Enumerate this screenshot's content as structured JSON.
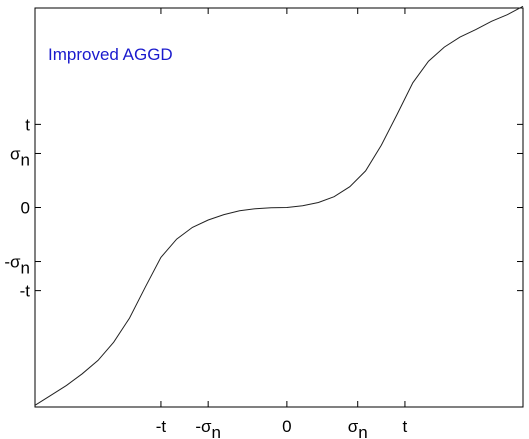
{
  "chart_data": {
    "type": "line",
    "title": "",
    "xlabel": "",
    "ylabel": "",
    "grid": false,
    "xlim": [
      -3.2,
      3.0
    ],
    "ylim": [
      -2.4,
      2.4
    ],
    "annotation": {
      "text": "Improved AGGD",
      "color": "#1a1acd"
    },
    "x_ticks": [
      {
        "value": -1.6,
        "base": "-t",
        "sub": ""
      },
      {
        "value": -1.0,
        "base": "-σ",
        "sub": "n"
      },
      {
        "value": 0.0,
        "base": "0",
        "sub": ""
      },
      {
        "value": 0.9,
        "base": "σ",
        "sub": "n"
      },
      {
        "value": 1.5,
        "base": "t",
        "sub": ""
      }
    ],
    "y_ticks": [
      {
        "value": 1.0,
        "base": "t",
        "sub": ""
      },
      {
        "value": 0.65,
        "base": "σ",
        "sub": "n"
      },
      {
        "value": 0.0,
        "base": "0",
        "sub": ""
      },
      {
        "value": -0.65,
        "base": "-σ",
        "sub": "n"
      },
      {
        "value": -1.0,
        "base": "-t",
        "sub": ""
      }
    ],
    "series": [
      {
        "color": "#222222",
        "x": [
          -3.2,
          -3.0,
          -2.8,
          -2.6,
          -2.4,
          -2.2,
          -2.0,
          -1.8,
          -1.6,
          -1.4,
          -1.2,
          -1.0,
          -0.8,
          -0.6,
          -0.4,
          -0.2,
          0.0,
          0.2,
          0.4,
          0.6,
          0.8,
          1.0,
          1.2,
          1.4,
          1.6,
          1.8,
          2.0,
          2.2,
          2.4,
          2.6,
          2.8,
          3.0
        ],
        "y": [
          -2.38,
          -2.26,
          -2.14,
          -2.0,
          -1.84,
          -1.62,
          -1.33,
          -0.96,
          -0.6,
          -0.38,
          -0.24,
          -0.15,
          -0.085,
          -0.04,
          -0.015,
          -0.003,
          0.0,
          0.02,
          0.06,
          0.13,
          0.25,
          0.44,
          0.75,
          1.12,
          1.5,
          1.76,
          1.93,
          2.05,
          2.14,
          2.24,
          2.32,
          2.42
        ]
      }
    ]
  }
}
